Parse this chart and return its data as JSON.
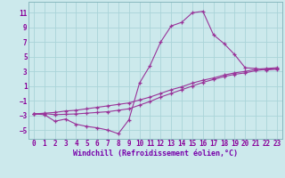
{
  "bg_color": "#cce9ec",
  "grid_color": "#aad4d8",
  "line_color": "#993399",
  "xlabel": "Windchill (Refroidissement éolien,°C)",
  "xlim": [
    -0.5,
    23.5
  ],
  "ylim": [
    -6.2,
    12.5
  ],
  "yticks": [
    -5,
    -3,
    -1,
    1,
    3,
    5,
    7,
    9,
    11
  ],
  "xticks": [
    0,
    1,
    2,
    3,
    4,
    5,
    6,
    7,
    8,
    9,
    10,
    11,
    12,
    13,
    14,
    15,
    16,
    17,
    18,
    19,
    20,
    21,
    22,
    23
  ],
  "line1_x": [
    0,
    1,
    2,
    3,
    4,
    5,
    6,
    7,
    8,
    9,
    10,
    11,
    12,
    13,
    14,
    15,
    16,
    17,
    18,
    19,
    20,
    21,
    22,
    23
  ],
  "line1_y": [
    -2.8,
    -2.9,
    -3.8,
    -3.5,
    -4.2,
    -4.5,
    -4.7,
    -5.0,
    -5.5,
    -3.6,
    1.4,
    3.8,
    7.0,
    9.2,
    9.7,
    11.0,
    11.2,
    8.0,
    6.8,
    5.3,
    3.5,
    3.4,
    3.2,
    3.3
  ],
  "line2_x": [
    0,
    1,
    2,
    3,
    4,
    5,
    6,
    7,
    8,
    9,
    10,
    11,
    12,
    13,
    14,
    15,
    16,
    17,
    18,
    19,
    20,
    21,
    22,
    23
  ],
  "line2_y": [
    -2.8,
    -2.7,
    -2.6,
    -2.4,
    -2.3,
    -2.1,
    -1.9,
    -1.7,
    -1.5,
    -1.3,
    -0.9,
    -0.5,
    0.0,
    0.5,
    0.9,
    1.4,
    1.8,
    2.1,
    2.5,
    2.8,
    3.0,
    3.3,
    3.4,
    3.5
  ],
  "line3_x": [
    0,
    1,
    2,
    3,
    4,
    5,
    6,
    7,
    8,
    9,
    10,
    11,
    12,
    13,
    14,
    15,
    16,
    17,
    18,
    19,
    20,
    21,
    22,
    23
  ],
  "line3_y": [
    -2.8,
    -2.75,
    -2.9,
    -2.85,
    -2.8,
    -2.7,
    -2.6,
    -2.5,
    -2.3,
    -2.1,
    -1.6,
    -1.1,
    -0.5,
    0.0,
    0.5,
    1.0,
    1.5,
    1.9,
    2.3,
    2.6,
    2.8,
    3.1,
    3.3,
    3.4
  ]
}
